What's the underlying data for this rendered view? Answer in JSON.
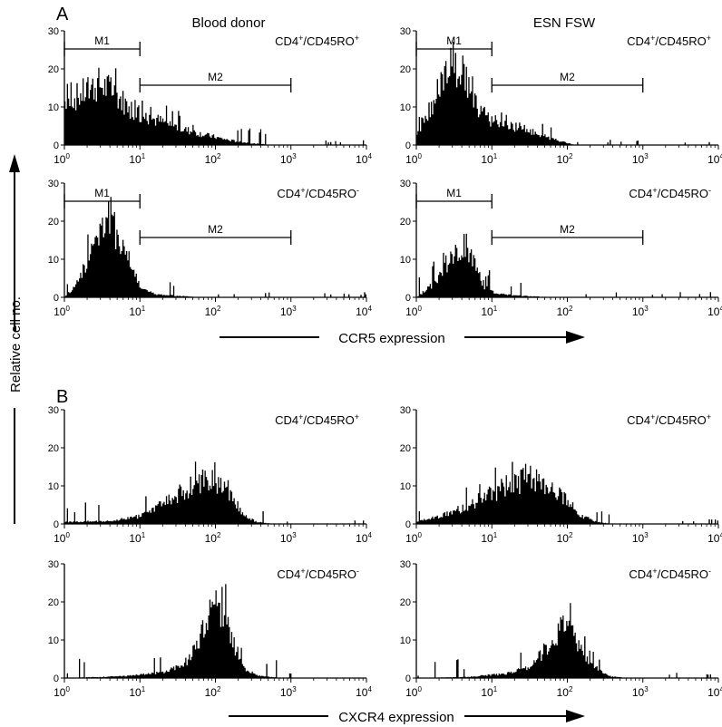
{
  "figure": {
    "ylabel": "Relative cell no.",
    "columns": [
      "Blood donor",
      "ESN FSW"
    ],
    "sections": [
      {
        "letter": "A",
        "xlabel": "CCR5 expression"
      },
      {
        "letter": "B",
        "xlabel": "CXCR4 expression"
      }
    ]
  },
  "chart_data": [
    {
      "type": "histogram",
      "section": "A",
      "column": "Blood donor",
      "label_main": "CD4",
      "label_sup1": "+",
      "label_mid": "/CD45RO",
      "label_sup2": "+",
      "xscale": "log",
      "xlim": [
        1,
        10000
      ],
      "x_tick_base": "10",
      "x_tick_exps": [
        "0",
        "1",
        "2",
        "3",
        "4"
      ],
      "ylim": [
        0,
        30
      ],
      "yticks": [
        "0",
        "10",
        "20",
        "30"
      ],
      "gates": [
        {
          "name": "M1",
          "from": 1,
          "to": 10
        },
        {
          "name": "M2",
          "from": 10,
          "to": 1000
        }
      ],
      "profile": [
        {
          "log10": 0,
          "y": 11
        },
        {
          "log10": 0.2,
          "y": 13
        },
        {
          "log10": 0.45,
          "y": 16
        },
        {
          "log10": 0.65,
          "y": 14
        },
        {
          "log10": 0.85,
          "y": 10
        },
        {
          "log10": 1.0,
          "y": 8
        },
        {
          "log10": 1.3,
          "y": 6
        },
        {
          "log10": 1.6,
          "y": 4
        },
        {
          "log10": 1.9,
          "y": 2.5
        },
        {
          "log10": 2.2,
          "y": 1.2
        },
        {
          "log10": 2.5,
          "y": 0.4
        },
        {
          "log10": 2.8,
          "y": 0
        }
      ]
    },
    {
      "type": "histogram",
      "section": "A",
      "column": "ESN FSW",
      "label_main": "CD4",
      "label_sup1": "+",
      "label_mid": "/CD45RO",
      "label_sup2": "+",
      "xscale": "log",
      "xlim": [
        1,
        10000
      ],
      "x_tick_base": "10",
      "x_tick_exps": [
        "0",
        "1",
        "2",
        "3",
        "4"
      ],
      "ylim": [
        0,
        30
      ],
      "yticks": [
        "0",
        "10",
        "20",
        "30"
      ],
      "gates": [
        {
          "name": "M1",
          "from": 1,
          "to": 10
        },
        {
          "name": "M2",
          "from": 10,
          "to": 1000
        }
      ],
      "profile": [
        {
          "log10": 0,
          "y": 2
        },
        {
          "log10": 0.15,
          "y": 8
        },
        {
          "log10": 0.3,
          "y": 15
        },
        {
          "log10": 0.5,
          "y": 21
        },
        {
          "log10": 0.65,
          "y": 18
        },
        {
          "log10": 0.8,
          "y": 10
        },
        {
          "log10": 1.0,
          "y": 6
        },
        {
          "log10": 1.3,
          "y": 5
        },
        {
          "log10": 1.6,
          "y": 3
        },
        {
          "log10": 1.9,
          "y": 1
        },
        {
          "log10": 2.1,
          "y": 0
        }
      ]
    },
    {
      "type": "histogram",
      "section": "A",
      "column": "Blood donor",
      "label_main": "CD4",
      "label_sup1": "+",
      "label_mid": "/CD45RO",
      "label_sup2": "-",
      "xscale": "log",
      "xlim": [
        1,
        10000
      ],
      "x_tick_base": "10",
      "x_tick_exps": [
        "0",
        "1",
        "2",
        "3",
        "4"
      ],
      "ylim": [
        0,
        30
      ],
      "yticks": [
        "0",
        "10",
        "20",
        "30"
      ],
      "gates": [
        {
          "name": "M1",
          "from": 1,
          "to": 10
        },
        {
          "name": "M2",
          "from": 10,
          "to": 1000
        }
      ],
      "profile": [
        {
          "log10": 0,
          "y": 0
        },
        {
          "log10": 0.15,
          "y": 3
        },
        {
          "log10": 0.3,
          "y": 10
        },
        {
          "log10": 0.45,
          "y": 17
        },
        {
          "log10": 0.6,
          "y": 21
        },
        {
          "log10": 0.75,
          "y": 15
        },
        {
          "log10": 0.9,
          "y": 7
        },
        {
          "log10": 1.05,
          "y": 2
        },
        {
          "log10": 1.2,
          "y": 0.8
        },
        {
          "log10": 1.5,
          "y": 0.4
        },
        {
          "log10": 1.8,
          "y": 0
        }
      ]
    },
    {
      "type": "histogram",
      "section": "A",
      "column": "ESN FSW",
      "label_main": "CD4",
      "label_sup1": "+",
      "label_mid": "/CD45RO",
      "label_sup2": "-",
      "xscale": "log",
      "xlim": [
        1,
        10000
      ],
      "x_tick_base": "10",
      "x_tick_exps": [
        "0",
        "1",
        "2",
        "3",
        "4"
      ],
      "ylim": [
        0,
        30
      ],
      "yticks": [
        "0",
        "10",
        "20",
        "30"
      ],
      "gates": [
        {
          "name": "M1",
          "from": 1,
          "to": 10
        },
        {
          "name": "M2",
          "from": 10,
          "to": 1000
        }
      ],
      "profile": [
        {
          "log10": 0,
          "y": 0
        },
        {
          "log10": 0.2,
          "y": 3
        },
        {
          "log10": 0.4,
          "y": 8
        },
        {
          "log10": 0.55,
          "y": 12
        },
        {
          "log10": 0.65,
          "y": 14
        },
        {
          "log10": 0.75,
          "y": 9
        },
        {
          "log10": 0.9,
          "y": 3
        },
        {
          "log10": 1.05,
          "y": 1
        },
        {
          "log10": 1.3,
          "y": 0.5
        },
        {
          "log10": 1.6,
          "y": 0.2
        },
        {
          "log10": 1.9,
          "y": 0
        }
      ]
    },
    {
      "type": "histogram",
      "section": "B",
      "column": "Blood donor",
      "label_main": "CD4",
      "label_sup1": "+",
      "label_mid": "/CD45RO",
      "label_sup2": "+",
      "xscale": "log",
      "xlim": [
        1,
        10000
      ],
      "x_tick_base": "10",
      "x_tick_exps": [
        "0",
        "1",
        "2",
        "3",
        "4"
      ],
      "ylim": [
        0,
        30
      ],
      "yticks": [
        "0",
        "10",
        "20",
        "30"
      ],
      "gates": [],
      "profile": [
        {
          "log10": 0,
          "y": 0.5
        },
        {
          "log10": 0.6,
          "y": 0.8
        },
        {
          "log10": 1.0,
          "y": 2
        },
        {
          "log10": 1.3,
          "y": 5
        },
        {
          "log10": 1.6,
          "y": 9
        },
        {
          "log10": 1.85,
          "y": 12
        },
        {
          "log10": 2.05,
          "y": 10
        },
        {
          "log10": 2.25,
          "y": 6
        },
        {
          "log10": 2.4,
          "y": 2
        },
        {
          "log10": 2.55,
          "y": 0.5
        },
        {
          "log10": 2.8,
          "y": 0
        }
      ]
    },
    {
      "type": "histogram",
      "section": "B",
      "column": "ESN FSW",
      "label_main": "CD4",
      "label_sup1": "+",
      "label_mid": "/CD45RO",
      "label_sup2": "+",
      "xscale": "log",
      "xlim": [
        1,
        10000
      ],
      "x_tick_base": "10",
      "x_tick_exps": [
        "0",
        "1",
        "2",
        "3",
        "4"
      ],
      "ylim": [
        0,
        30
      ],
      "yticks": [
        "0",
        "10",
        "20",
        "30"
      ],
      "gates": [],
      "profile": [
        {
          "log10": 0,
          "y": 0.5
        },
        {
          "log10": 0.3,
          "y": 2
        },
        {
          "log10": 0.6,
          "y": 4
        },
        {
          "log10": 0.9,
          "y": 7
        },
        {
          "log10": 1.2,
          "y": 10
        },
        {
          "log10": 1.5,
          "y": 12
        },
        {
          "log10": 1.75,
          "y": 11
        },
        {
          "log10": 2.0,
          "y": 6
        },
        {
          "log10": 2.2,
          "y": 2
        },
        {
          "log10": 2.4,
          "y": 0.5
        },
        {
          "log10": 2.6,
          "y": 0
        }
      ]
    },
    {
      "type": "histogram",
      "section": "B",
      "column": "Blood donor",
      "label_main": "CD4",
      "label_sup1": "+",
      "label_mid": "/CD45RO",
      "label_sup2": "-",
      "xscale": "log",
      "xlim": [
        1,
        10000
      ],
      "x_tick_base": "10",
      "x_tick_exps": [
        "0",
        "1",
        "2",
        "3",
        "4"
      ],
      "ylim": [
        0,
        30
      ],
      "yticks": [
        "0",
        "10",
        "20",
        "30"
      ],
      "gates": [],
      "profile": [
        {
          "log10": 0,
          "y": 0
        },
        {
          "log10": 0.8,
          "y": 0.5
        },
        {
          "log10": 1.3,
          "y": 1.5
        },
        {
          "log10": 1.6,
          "y": 4
        },
        {
          "log10": 1.8,
          "y": 10
        },
        {
          "log10": 1.95,
          "y": 18
        },
        {
          "log10": 2.1,
          "y": 19
        },
        {
          "log10": 2.25,
          "y": 9
        },
        {
          "log10": 2.4,
          "y": 2
        },
        {
          "log10": 2.6,
          "y": 0.5
        },
        {
          "log10": 2.9,
          "y": 0
        }
      ]
    },
    {
      "type": "histogram",
      "section": "B",
      "column": "ESN FSW",
      "label_main": "CD4",
      "label_sup1": "+",
      "label_mid": "/CD45RO",
      "label_sup2": "-",
      "xscale": "log",
      "xlim": [
        1,
        10000
      ],
      "x_tick_base": "10",
      "x_tick_exps": [
        "0",
        "1",
        "2",
        "3",
        "4"
      ],
      "ylim": [
        0,
        30
      ],
      "yticks": [
        "0",
        "10",
        "20",
        "30"
      ],
      "gates": [],
      "profile": [
        {
          "log10": 0,
          "y": 0
        },
        {
          "log10": 0.7,
          "y": 0.3
        },
        {
          "log10": 1.2,
          "y": 1.2
        },
        {
          "log10": 1.5,
          "y": 3
        },
        {
          "log10": 1.7,
          "y": 7
        },
        {
          "log10": 1.9,
          "y": 12
        },
        {
          "log10": 2.0,
          "y": 15
        },
        {
          "log10": 2.15,
          "y": 9
        },
        {
          "log10": 2.35,
          "y": 3
        },
        {
          "log10": 2.55,
          "y": 0.5
        },
        {
          "log10": 2.8,
          "y": 0
        }
      ]
    }
  ]
}
